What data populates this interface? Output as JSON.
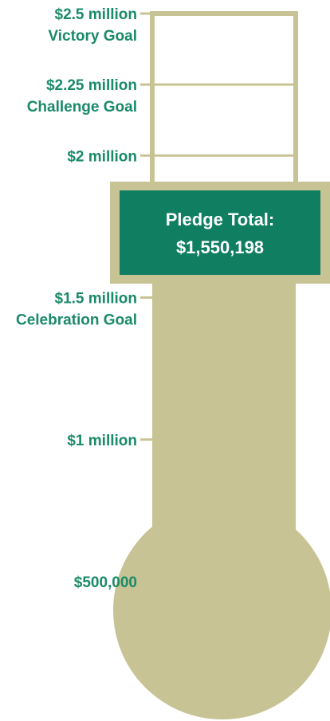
{
  "chart_data": {
    "type": "bar",
    "title": "",
    "unit": "USD",
    "current_value": 1550198,
    "ylim": [
      0,
      2500000
    ],
    "tick_labels": [
      {
        "value": 2500000,
        "label": "$2.5 million",
        "sublabel": "Victory Goal"
      },
      {
        "value": 2250000,
        "label": "$2.25 million",
        "sublabel": "Challenge Goal"
      },
      {
        "value": 2000000,
        "label": "$2 million",
        "sublabel": ""
      },
      {
        "value": 1500000,
        "label": "$1.5 million",
        "sublabel": "Celebration Goal"
      },
      {
        "value": 1000000,
        "label": "$1 million",
        "sublabel": ""
      },
      {
        "value": 500000,
        "label": "$500,000",
        "sublabel": ""
      }
    ],
    "pledge_box": {
      "label": "Pledge Total:",
      "value_text": "$1,550,198"
    },
    "colors": {
      "fill": "#c8c394",
      "outline": "#c8c394",
      "label_text": "#1a8a68",
      "pledge_box_fill": "#0f7e61",
      "pledge_box_text": "#ffffff",
      "background": "#ffffff"
    }
  }
}
